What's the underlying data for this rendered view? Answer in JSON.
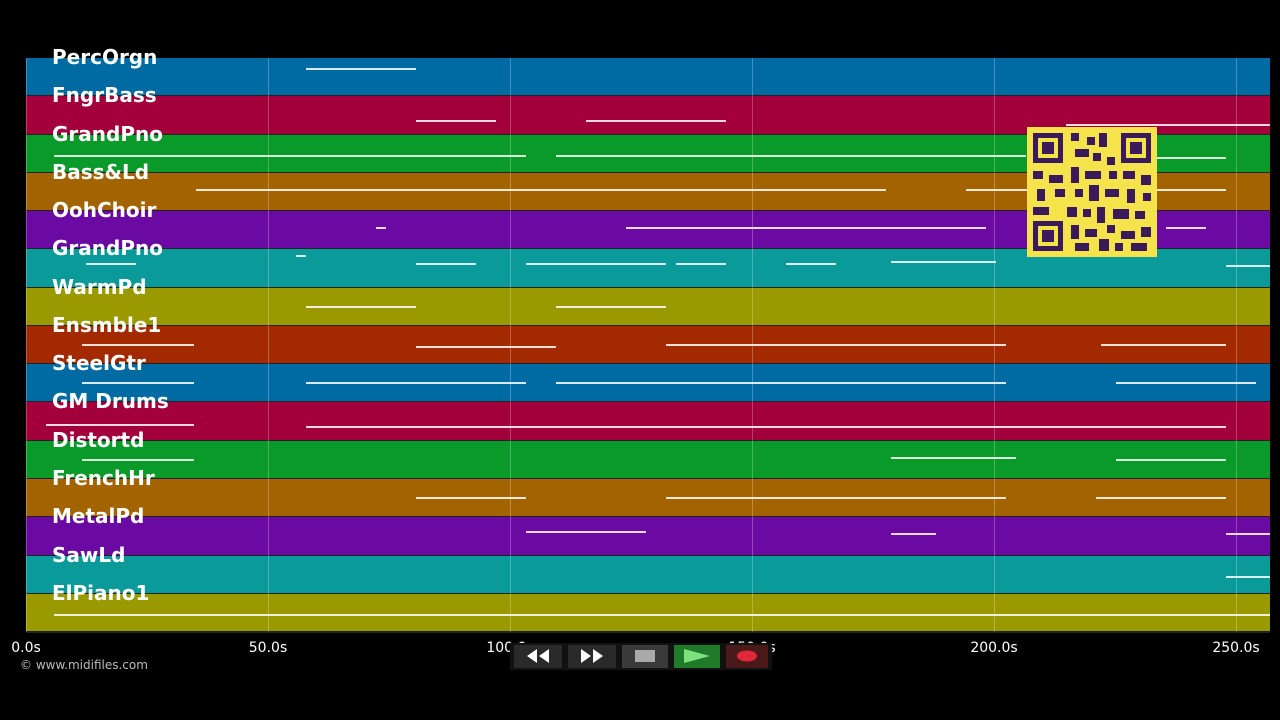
{
  "tracks": [
    {
      "name": "PercOrgn",
      "color": "#006aa3"
    },
    {
      "name": "FngrBass",
      "color": "#a3003b"
    },
    {
      "name": "GrandPno",
      "color": "#0a9a2a"
    },
    {
      "name": "Bass&Ld",
      "color": "#a36400"
    },
    {
      "name": "OohChoir",
      "color": "#6a0aa3"
    },
    {
      "name": "GrandPno",
      "color": "#0a9a9a"
    },
    {
      "name": "WarmPd",
      "color": "#9a9a00"
    },
    {
      "name": "Ensmble1",
      "color": "#a32a00"
    },
    {
      "name": "SteelGtr",
      "color": "#006aa3"
    },
    {
      "name": "GM Drums",
      "color": "#a3003b"
    },
    {
      "name": "Distortd",
      "color": "#0a9a2a"
    },
    {
      "name": "FrenchHr",
      "color": "#a36400"
    },
    {
      "name": "MetalPd",
      "color": "#6a0aa3"
    },
    {
      "name": "SawLd",
      "color": "#0a9a9a"
    },
    {
      "name": "ElPiano1",
      "color": "#9a9a00"
    }
  ],
  "timeline": {
    "ticks": [
      "0.0s",
      "50.0s",
      "100.0s",
      "150.0s",
      "200.0s",
      "250.0s"
    ]
  },
  "copyright": "© www.midifiles.com",
  "transport": {
    "rewind_icon": "rewind-icon",
    "forward_icon": "fast-forward-icon",
    "stop_icon": "stop-icon",
    "play_icon": "play-icon",
    "record_icon": "record-icon"
  }
}
